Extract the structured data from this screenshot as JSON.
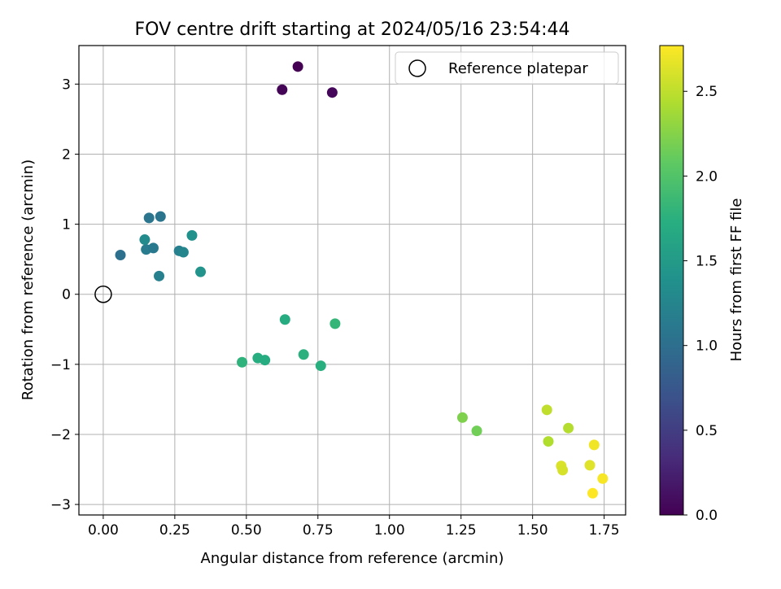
{
  "chart_data": {
    "type": "scatter",
    "title": "FOV centre drift starting at 2024/05/16 23:54:44",
    "xlabel": "Angular distance from reference (arcmin)",
    "ylabel": "Rotation from reference (arcmin)",
    "xlim": [
      -0.085,
      1.825
    ],
    "ylim": [
      -3.15,
      3.55
    ],
    "xticks": [
      0.0,
      0.25,
      0.5,
      0.75,
      1.0,
      1.25,
      1.5,
      1.75
    ],
    "xtick_labels": [
      "0.00",
      "0.25",
      "0.50",
      "0.75",
      "1.00",
      "1.25",
      "1.50",
      "1.75"
    ],
    "yticks": [
      -3,
      -2,
      -1,
      0,
      1,
      2,
      3
    ],
    "ytick_labels": [
      "−3",
      "−2",
      "−1",
      "0",
      "1",
      "2",
      "3"
    ],
    "grid": true,
    "legend": {
      "position": "top-right",
      "entries": [
        "Reference platepar"
      ]
    },
    "reference_point": {
      "x": 0.0,
      "y": 0.0
    },
    "colorbar": {
      "label": "Hours from first FF file",
      "range": [
        0.0,
        2.77
      ],
      "ticks": [
        0.0,
        0.5,
        1.0,
        1.5,
        2.0,
        2.5
      ],
      "tick_labels": [
        "0.0",
        "0.5",
        "1.0",
        "1.5",
        "2.0",
        "2.5"
      ],
      "colormap": "viridis"
    },
    "points": [
      {
        "x": 0.68,
        "y": 3.25,
        "c": 0.0
      },
      {
        "x": 0.625,
        "y": 2.92,
        "c": 0.03
      },
      {
        "x": 0.8,
        "y": 2.88,
        "c": 0.05
      },
      {
        "x": 0.06,
        "y": 0.56,
        "c": 1.02
      },
      {
        "x": 0.16,
        "y": 1.09,
        "c": 1.08
      },
      {
        "x": 0.2,
        "y": 1.11,
        "c": 1.06
      },
      {
        "x": 0.15,
        "y": 0.64,
        "c": 1.15
      },
      {
        "x": 0.175,
        "y": 0.66,
        "c": 1.12
      },
      {
        "x": 0.145,
        "y": 0.78,
        "c": 1.32
      },
      {
        "x": 0.195,
        "y": 0.26,
        "c": 1.2
      },
      {
        "x": 0.265,
        "y": 0.62,
        "c": 1.18
      },
      {
        "x": 0.28,
        "y": 0.6,
        "c": 1.25
      },
      {
        "x": 0.31,
        "y": 0.84,
        "c": 1.38
      },
      {
        "x": 0.34,
        "y": 0.32,
        "c": 1.42
      },
      {
        "x": 0.635,
        "y": -0.36,
        "c": 1.7
      },
      {
        "x": 0.81,
        "y": -0.42,
        "c": 1.82
      },
      {
        "x": 0.485,
        "y": -0.97,
        "c": 1.78
      },
      {
        "x": 0.54,
        "y": -0.91,
        "c": 1.72
      },
      {
        "x": 0.565,
        "y": -0.94,
        "c": 1.7
      },
      {
        "x": 0.7,
        "y": -0.86,
        "c": 1.76
      },
      {
        "x": 0.76,
        "y": -1.02,
        "c": 1.74
      },
      {
        "x": 1.255,
        "y": -1.76,
        "c": 2.22
      },
      {
        "x": 1.305,
        "y": -1.95,
        "c": 2.16
      },
      {
        "x": 1.55,
        "y": -1.65,
        "c": 2.5
      },
      {
        "x": 1.555,
        "y": -2.1,
        "c": 2.44
      },
      {
        "x": 1.625,
        "y": -1.91,
        "c": 2.46
      },
      {
        "x": 1.6,
        "y": -2.45,
        "c": 2.62
      },
      {
        "x": 1.605,
        "y": -2.51,
        "c": 2.6
      },
      {
        "x": 1.7,
        "y": -2.44,
        "c": 2.64
      },
      {
        "x": 1.715,
        "y": -2.15,
        "c": 2.72
      },
      {
        "x": 1.745,
        "y": -2.63,
        "c": 2.74
      },
      {
        "x": 1.71,
        "y": -2.84,
        "c": 2.77
      }
    ]
  }
}
